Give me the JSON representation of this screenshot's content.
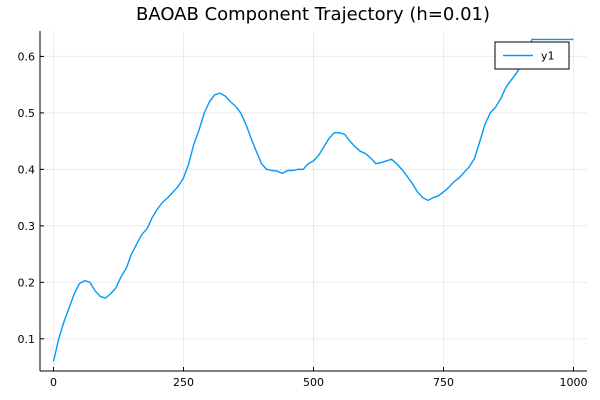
{
  "chart_data": {
    "type": "line",
    "title": "BAOAB Component Trajectory (h=0.01)",
    "xlabel": "",
    "ylabel": "",
    "xlim": [
      -26,
      1026
    ],
    "ylim": [
      0.043,
      0.645
    ],
    "x_ticks": [
      0,
      250,
      500,
      750,
      1000
    ],
    "x_tick_labels": [
      "0",
      "250",
      "500",
      "750",
      "1000"
    ],
    "y_ticks": [
      0.1,
      0.2,
      0.3,
      0.4,
      0.5,
      0.6
    ],
    "y_tick_labels": [
      "0.1",
      "0.2",
      "0.3",
      "0.4",
      "0.5",
      "0.6"
    ],
    "grid": true,
    "legend_position": "top-right",
    "series": [
      {
        "name": "y1",
        "color": "#009af9",
        "x": [
          0,
          10,
          20,
          30,
          40,
          50,
          60,
          70,
          80,
          90,
          100,
          110,
          120,
          130,
          140,
          150,
          160,
          170,
          180,
          190,
          200,
          210,
          220,
          230,
          240,
          250,
          260,
          270,
          280,
          290,
          300,
          310,
          320,
          330,
          340,
          350,
          360,
          370,
          380,
          390,
          400,
          410,
          420,
          430,
          440,
          450,
          460,
          470,
          480,
          490,
          500,
          510,
          520,
          530,
          540,
          550,
          560,
          570,
          580,
          590,
          600,
          610,
          620,
          630,
          640,
          650,
          660,
          670,
          680,
          690,
          700,
          710,
          720,
          730,
          740,
          750,
          760,
          770,
          780,
          790,
          800,
          810,
          820,
          830,
          840,
          850,
          860,
          870,
          880,
          890,
          900,
          910,
          920,
          930,
          940,
          950,
          960,
          970,
          980,
          990,
          1000
        ],
        "y": [
          0.06,
          0.1,
          0.13,
          0.155,
          0.18,
          0.198,
          0.203,
          0.2,
          0.185,
          0.175,
          0.172,
          0.18,
          0.19,
          0.21,
          0.225,
          0.25,
          0.268,
          0.285,
          0.295,
          0.315,
          0.33,
          0.342,
          0.35,
          0.36,
          0.37,
          0.385,
          0.41,
          0.445,
          0.47,
          0.5,
          0.52,
          0.532,
          0.535,
          0.53,
          0.52,
          0.512,
          0.5,
          0.48,
          0.455,
          0.432,
          0.41,
          0.4,
          0.398,
          0.397,
          0.393,
          0.398,
          0.398,
          0.4,
          0.4,
          0.41,
          0.415,
          0.425,
          0.44,
          0.455,
          0.465,
          0.465,
          0.462,
          0.45,
          0.44,
          0.432,
          0.428,
          0.42,
          0.41,
          0.412,
          0.415,
          0.418,
          0.41,
          0.4,
          0.388,
          0.375,
          0.36,
          0.35,
          0.345,
          0.35,
          0.353,
          0.36,
          0.368,
          0.378,
          0.385,
          0.395,
          0.405,
          0.42,
          0.45,
          0.48,
          0.5,
          0.51,
          0.525,
          0.545,
          0.558,
          0.57,
          0.585,
          0.605,
          0.63,
          0.63,
          0.63,
          0.63,
          0.63,
          0.63,
          0.63,
          0.63,
          0.63
        ]
      }
    ]
  }
}
